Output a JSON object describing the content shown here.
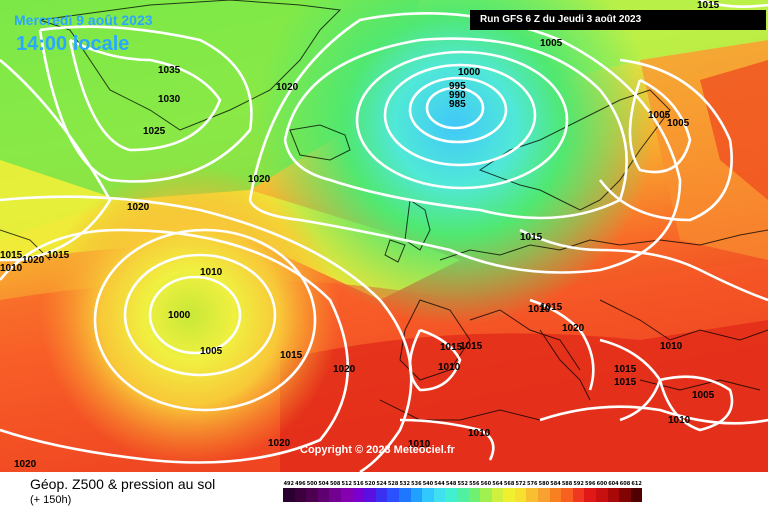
{
  "header": {
    "date": "Mercredi 9 août 2023",
    "time": "14:00 locale",
    "run": "Run GFS 6 Z du Jeudi 3 août 2023"
  },
  "copyright": "Copyright © 2023 Meteociel.fr",
  "footer": {
    "title": "Géop. Z500 & pression au sol",
    "subtitle": "(+ 150h)"
  },
  "legend": {
    "values": [
      "492",
      "496",
      "500",
      "504",
      "508",
      "512",
      "516",
      "520",
      "524",
      "528",
      "532",
      "536",
      "540",
      "544",
      "548",
      "552",
      "556",
      "560",
      "564",
      "568",
      "572",
      "576",
      "580",
      "584",
      "588",
      "592",
      "596",
      "600",
      "604",
      "608",
      "612"
    ],
    "colors": [
      "#2a0030",
      "#3c003f",
      "#4e0050",
      "#600070",
      "#720090",
      "#8400b0",
      "#7a00d0",
      "#5a10e0",
      "#3a30f0",
      "#2a50ff",
      "#1e78ff",
      "#20a0ff",
      "#30c8ff",
      "#40e0f0",
      "#40f0d0",
      "#50f0a0",
      "#70f070",
      "#a0f050",
      "#d0f040",
      "#f0f030",
      "#f8e030",
      "#f8c030",
      "#f8a030",
      "#f88020",
      "#f86020",
      "#f03820",
      "#e01818",
      "#c81010",
      "#a80808",
      "#800404",
      "#500000"
    ]
  },
  "isobars": [
    {
      "value": "1035"
    },
    {
      "value": "1030"
    },
    {
      "value": "1025"
    },
    {
      "value": "1020"
    },
    {
      "value": "1020"
    },
    {
      "value": "1020"
    },
    {
      "value": "1005"
    },
    {
      "value": "1000"
    },
    {
      "value": "995"
    },
    {
      "value": "990"
    },
    {
      "value": "985"
    },
    {
      "value": "1005"
    },
    {
      "value": "1005"
    },
    {
      "value": "1015"
    },
    {
      "value": "1015"
    },
    {
      "value": "1020"
    },
    {
      "value": "1010"
    },
    {
      "value": "1015"
    },
    {
      "value": "1010"
    },
    {
      "value": "1000"
    },
    {
      "value": "1005"
    },
    {
      "value": "1015"
    },
    {
      "value": "1020"
    },
    {
      "value": "1015"
    },
    {
      "value": "1010"
    },
    {
      "value": "1015"
    },
    {
      "value": "1010"
    },
    {
      "value": "1020"
    },
    {
      "value": "1015"
    },
    {
      "value": "1015"
    },
    {
      "value": "1005"
    },
    {
      "value": "1010"
    },
    {
      "value": "1010"
    },
    {
      "value": "1010"
    },
    {
      "value": "1020"
    },
    {
      "value": "1020"
    },
    {
      "value": "1010"
    },
    {
      "value": "1015"
    },
    {
      "value": "1015"
    }
  ]
}
